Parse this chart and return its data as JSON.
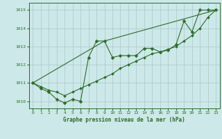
{
  "title": "Graphe pression niveau de la mer (hPa)",
  "line1_x": [
    0,
    1,
    2,
    3,
    4,
    5,
    6,
    7,
    8,
    9,
    10,
    11,
    12,
    13,
    14,
    15,
    16,
    17,
    18,
    19,
    20,
    21,
    22,
    23
  ],
  "line1_y": [
    1011.0,
    1010.7,
    1010.5,
    1010.1,
    1009.9,
    1010.1,
    1010.0,
    1012.4,
    1013.3,
    1013.3,
    1012.4,
    1012.5,
    1012.5,
    1012.5,
    1012.9,
    1012.9,
    1012.7,
    1012.8,
    1013.1,
    1014.4,
    1013.8,
    1015.0,
    1015.0,
    1015.0
  ],
  "line2_x": [
    0,
    1,
    2,
    3,
    4,
    5,
    6,
    7,
    8,
    9,
    10,
    11,
    12,
    13,
    14,
    15,
    16,
    17,
    18,
    19,
    20,
    21,
    22,
    23
  ],
  "line2_y": [
    1011.0,
    1010.8,
    1010.6,
    1010.5,
    1010.3,
    1010.5,
    1010.7,
    1010.9,
    1011.1,
    1011.3,
    1011.5,
    1011.8,
    1012.0,
    1012.2,
    1012.4,
    1012.6,
    1012.7,
    1012.85,
    1013.0,
    1013.3,
    1013.6,
    1014.0,
    1014.6,
    1015.0
  ],
  "line3_x": [
    0,
    9,
    23
  ],
  "line3_y": [
    1011.0,
    1013.3,
    1015.0
  ],
  "line_color": "#2d6a2d",
  "bg_color": "#cce8e8",
  "grid_major_color": "#b0cccc",
  "grid_minor_color": "#d0e8e8",
  "marker": "D",
  "ylim": [
    1009.6,
    1015.4
  ],
  "yticks": [
    1010,
    1011,
    1012,
    1013,
    1014,
    1015
  ],
  "xlim": [
    -0.5,
    23.5
  ],
  "xticks": [
    0,
    1,
    2,
    3,
    4,
    5,
    6,
    7,
    8,
    9,
    10,
    11,
    12,
    13,
    14,
    15,
    16,
    17,
    18,
    19,
    20,
    21,
    22,
    23
  ]
}
